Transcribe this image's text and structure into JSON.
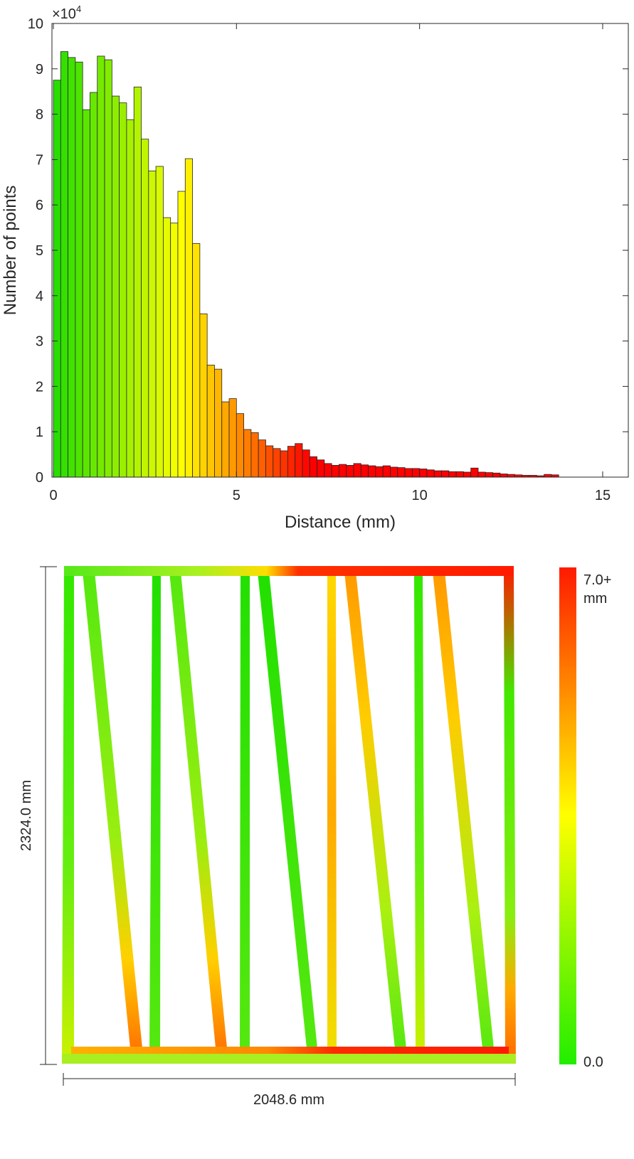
{
  "chart_data": [
    {
      "type": "bar",
      "xlabel": "Distance (mm)",
      "ylabel": "Number of points",
      "y_multiplier_label": "×10",
      "y_multiplier_exponent": "4",
      "xlim": [
        0,
        15.7
      ],
      "ylim": [
        0,
        10
      ],
      "x_ticks": [
        0,
        5,
        10,
        15
      ],
      "y_ticks": [
        0,
        1,
        2,
        3,
        4,
        5,
        6,
        7,
        8,
        9,
        10
      ],
      "bin_width": 0.2,
      "bin_start": 0,
      "color_scale": {
        "min_color": "#22dd00",
        "mid_color": "#ffff00",
        "max_color": "#ff0000",
        "mid_value": 3.5,
        "max_value": 7.0
      },
      "values": [
        8.75,
        9.38,
        9.25,
        9.15,
        8.1,
        8.48,
        9.28,
        9.2,
        8.4,
        8.25,
        7.88,
        8.6,
        7.45,
        6.75,
        6.85,
        5.72,
        5.6,
        6.3,
        7.02,
        5.15,
        3.6,
        2.47,
        2.38,
        1.66,
        1.73,
        1.4,
        1.05,
        0.98,
        0.82,
        0.69,
        0.63,
        0.58,
        0.68,
        0.74,
        0.6,
        0.45,
        0.38,
        0.3,
        0.26,
        0.28,
        0.26,
        0.3,
        0.27,
        0.25,
        0.23,
        0.25,
        0.22,
        0.21,
        0.19,
        0.19,
        0.18,
        0.16,
        0.14,
        0.14,
        0.12,
        0.12,
        0.11,
        0.2,
        0.11,
        0.1,
        0.09,
        0.07,
        0.06,
        0.05,
        0.04,
        0.04,
        0.03,
        0.06,
        0.05
      ]
    },
    {
      "type": "heatmap",
      "width_label": "2048.6 mm",
      "height_label": "2324.0 mm",
      "colorbar_max_label": "7.0+",
      "colorbar_unit": "mm",
      "colorbar_min_label": "0.0",
      "colors": {
        "low": "#22ee00",
        "mid": "#ffff00",
        "high": "#ff1a00"
      }
    }
  ]
}
